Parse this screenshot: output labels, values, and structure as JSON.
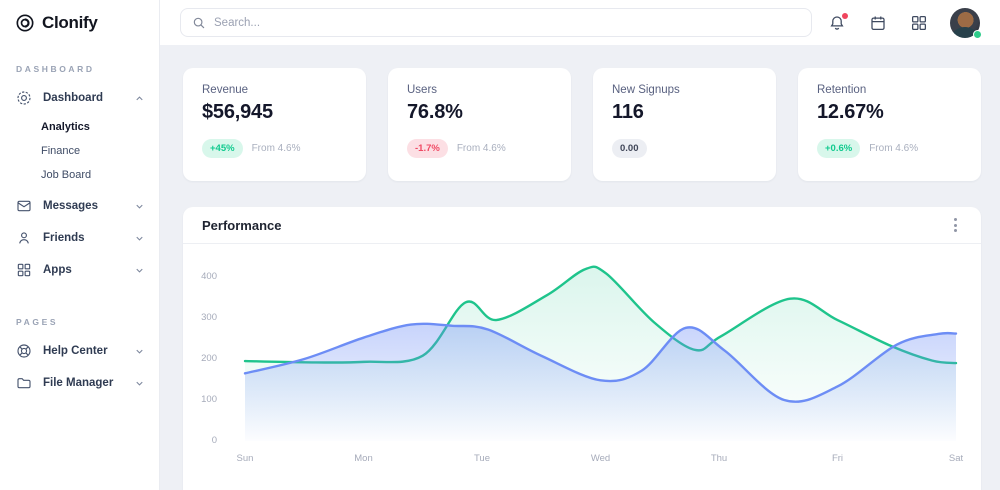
{
  "brand": {
    "name": "Clonify"
  },
  "topbar": {
    "search_placeholder": "Search...",
    "icons": [
      "bell-icon",
      "calendar-icon",
      "apps-grid-icon",
      "user-avatar"
    ],
    "notification_dot_color": "#f0455e",
    "online_dot_color": "#2ecc8b"
  },
  "sidebar": {
    "sections": [
      {
        "label": "DASHBOARD",
        "items": [
          {
            "label": "Dashboard",
            "icon": "disc-icon",
            "state": "expanded",
            "children": [
              "Analytics",
              "Finance",
              "Job Board"
            ],
            "active_child": "Analytics"
          },
          {
            "label": "Messages",
            "icon": "mail-icon",
            "state": "collapsed"
          },
          {
            "label": "Friends",
            "icon": "person-icon",
            "state": "collapsed"
          },
          {
            "label": "Apps",
            "icon": "grid-icon",
            "state": "collapsed"
          }
        ]
      },
      {
        "label": "PAGES",
        "items": [
          {
            "label": "Help Center",
            "icon": "life-buoy-icon",
            "state": "collapsed"
          },
          {
            "label": "File Manager",
            "icon": "folder-icon",
            "state": "collapsed"
          }
        ]
      }
    ]
  },
  "cards": [
    {
      "title": "Revenue",
      "value": "$56,945",
      "badge": "+45%",
      "trend": "up",
      "note": "From 4.6%"
    },
    {
      "title": "Users",
      "value": "76.8%",
      "badge": "-1.7%",
      "trend": "down",
      "note": "From 4.6%"
    },
    {
      "title": "New Signups",
      "value": "116",
      "badge": "0.00",
      "trend": "neutral",
      "note": ""
    },
    {
      "title": "Retention",
      "value": "12.67%",
      "badge": "+0.6%",
      "trend": "up",
      "note": "From 4.6%"
    }
  ],
  "colors": {
    "positive": "#10ca8e",
    "negative": "#f04a64",
    "series_green": "#1fc48c",
    "series_blue": "#6d8df5",
    "background": "#eef0f5"
  },
  "chart_data": {
    "type": "area",
    "title": "Performance",
    "categories": [
      "Sun",
      "Mon",
      "Tue",
      "Wed",
      "Thu",
      "Fri",
      "Sat"
    ],
    "y_ticks": [
      0,
      100,
      200,
      300,
      400
    ],
    "ylim": [
      0,
      440
    ],
    "xlabel": "",
    "ylabel": "",
    "grid": false,
    "legend": "none",
    "smooth": true,
    "series": [
      {
        "name": "series-green",
        "color": "#1fc48c",
        "fill_top": "rgba(31,196,140,0.16)",
        "fill_bottom": "rgba(31,196,140,0)",
        "points": [
          [
            0,
            195
          ],
          [
            0.5,
            192
          ],
          [
            1,
            193
          ],
          [
            1.5,
            208
          ],
          [
            1.86,
            338
          ],
          [
            2.12,
            295
          ],
          [
            2.55,
            356
          ],
          [
            2.87,
            419
          ],
          [
            3.05,
            408
          ],
          [
            3.45,
            290
          ],
          [
            3.8,
            222
          ],
          [
            4.02,
            256
          ],
          [
            4.6,
            347
          ],
          [
            5,
            295
          ],
          [
            5.45,
            232
          ],
          [
            5.8,
            196
          ],
          [
            6,
            190
          ]
        ]
      },
      {
        "name": "series-blue",
        "color": "#6d8df5",
        "fill_top": "rgba(109,141,245,0.38)",
        "fill_bottom": "rgba(109,141,245,0.02)",
        "points": [
          [
            0,
            165
          ],
          [
            0.5,
            200
          ],
          [
            1,
            252
          ],
          [
            1.4,
            284
          ],
          [
            1.75,
            281
          ],
          [
            2.05,
            272
          ],
          [
            2.5,
            208
          ],
          [
            3,
            148
          ],
          [
            3.35,
            172
          ],
          [
            3.72,
            276
          ],
          [
            4.05,
            220
          ],
          [
            4.55,
            100
          ],
          [
            5,
            133
          ],
          [
            5.5,
            235
          ],
          [
            5.85,
            261
          ],
          [
            6,
            262
          ]
        ]
      }
    ]
  }
}
